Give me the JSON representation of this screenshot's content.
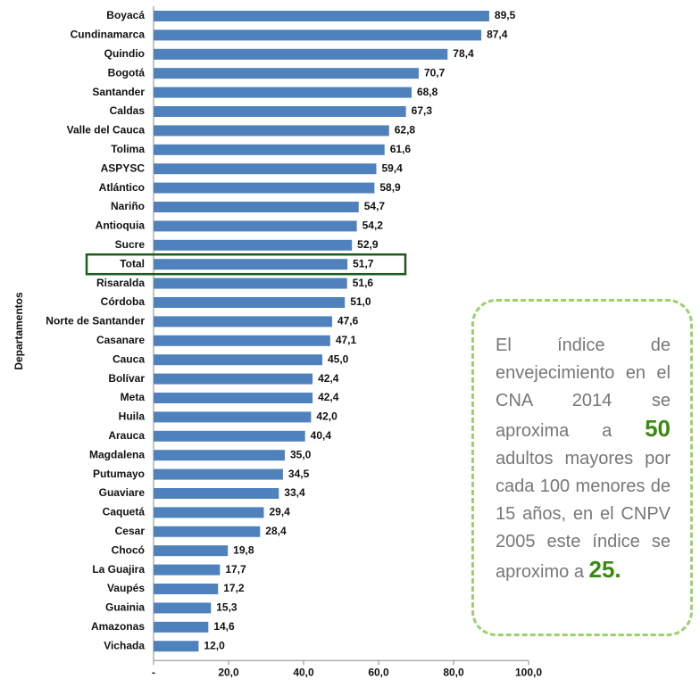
{
  "chart_data": {
    "type": "bar",
    "orientation": "horizontal",
    "y_axis_label": "Departamentos",
    "categories": [
      "Boyacá",
      "Cundinamarca",
      "Quindio",
      "Bogotá",
      "Santander",
      "Caldas",
      "Valle del Cauca",
      "Tolima",
      "ASPYSC",
      "Atlántico",
      "Nariño",
      "Antioquia",
      "Sucre",
      "Total",
      "Risaralda",
      "Córdoba",
      "Norte de Santander",
      "Casanare",
      "Cauca",
      "Bolívar",
      "Meta",
      "Huila",
      "Arauca",
      "Magdalena",
      "Putumayo",
      "Guaviare",
      "Caquetá",
      "Cesar",
      "Chocó",
      "La Guajira",
      "Vaupés",
      "Guainia",
      "Amazonas",
      "Vichada"
    ],
    "values": [
      89.5,
      87.4,
      78.4,
      70.7,
      68.8,
      67.3,
      62.8,
      61.6,
      59.4,
      58.9,
      54.7,
      54.2,
      52.9,
      51.7,
      51.6,
      51.0,
      47.6,
      47.1,
      45.0,
      42.4,
      42.4,
      42.0,
      40.4,
      35.0,
      34.5,
      33.4,
      29.4,
      28.4,
      19.8,
      17.7,
      17.2,
      15.3,
      14.6,
      12.0
    ],
    "value_labels": [
      "89,5",
      "87,4",
      "78,4",
      "70,7",
      "68,8",
      "67,3",
      "62,8",
      "61,6",
      "59,4",
      "58,9",
      "54,7",
      "54,2",
      "52,9",
      "51,7",
      "51,6",
      "51,0",
      "47,6",
      "47,1",
      "45,0",
      "42,4",
      "42,4",
      "42,0",
      "40,4",
      "35,0",
      "34,5",
      "33,4",
      "29,4",
      "28,4",
      "19,8",
      "17,7",
      "17,2",
      "15,3",
      "14,6",
      "12,0"
    ],
    "color": "#4f81bd",
    "highlighted_category": "Total",
    "highlight_color": "#1e5a1e",
    "xlim": [
      0,
      100
    ],
    "xticks": [
      {
        "value": 0,
        "label": "-"
      },
      {
        "value": 20,
        "label": "20,0"
      },
      {
        "value": 40,
        "label": "40,0"
      },
      {
        "value": 60,
        "label": "60,0"
      },
      {
        "value": 80,
        "label": "80,0"
      },
      {
        "value": 100,
        "label": "100,0"
      }
    ]
  },
  "annotation": {
    "text_before": "El índice de envejecimiento en el CNA 2014 se aproxima a",
    "highlight_1": "50",
    "text_after": "adultos mayores por cada 100 menores de 15 años, en el CNPV 2005 este índice se aproximo a",
    "highlight_2": "25."
  }
}
